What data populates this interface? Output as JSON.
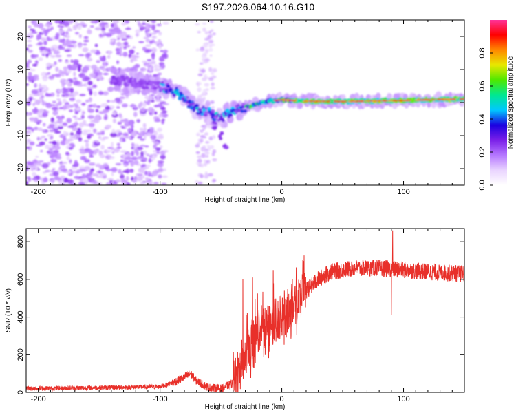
{
  "title": "S197.2026.064.10.16.G10",
  "colors": {
    "snr_line": "#e8302a",
    "axis": "#000000"
  },
  "chart_data": [
    {
      "type": "heatmap",
      "name": "spectrogram",
      "xlabel": "Height of straight line (km)",
      "ylabel": "Frequency (Hz)",
      "xlim": [
        -210,
        150
      ],
      "ylim": [
        -25,
        25
      ],
      "xticks": [
        -200,
        -100,
        0,
        100
      ],
      "yticks": [
        -20,
        -10,
        0,
        10,
        20
      ],
      "colorbar": {
        "label": "Normalized spectral amplitude",
        "range": [
          0,
          1
        ],
        "ticks": [
          0.0,
          0.2,
          0.4,
          0.6,
          0.8
        ],
        "colormap": [
          "#ffffff",
          "#e9d4ff",
          "#b577ff",
          "#7a1fe8",
          "#1a00e0",
          "#00c8ff",
          "#00e890",
          "#4ee800",
          "#e8e800",
          "#ff8800",
          "#ff0000",
          "#ff3399"
        ]
      },
      "features": {
        "noise_region_x": [
          -210,
          -95
        ],
        "sparse_band_x": [
          -70,
          -55
        ],
        "ridge": {
          "x": [
            -140,
            -120,
            -100,
            -90,
            -80,
            -70,
            -60,
            -50,
            -40,
            -30,
            -20,
            -10,
            0,
            20,
            50,
            80,
            100,
            130,
            150
          ],
          "freq": [
            7,
            6,
            5,
            4,
            1,
            -2,
            -3,
            -5,
            -2,
            -1.5,
            -0.5,
            0.5,
            0.8,
            0.4,
            0.3,
            0.5,
            0.6,
            0.9,
            1.0
          ]
        },
        "drift_tail": {
          "x": [
            -55,
            -50,
            -46
          ],
          "freq": [
            -7,
            -10,
            -13
          ]
        }
      }
    },
    {
      "type": "line",
      "name": "snr",
      "xlabel": "Height of straight line (km)",
      "ylabel": "SNR (10 * v/v)",
      "xlim": [
        -210,
        150
      ],
      "ylim": [
        0,
        870
      ],
      "xticks": [
        -200,
        -100,
        0,
        100
      ],
      "yticks": [
        0,
        200,
        400,
        600,
        800
      ],
      "trend": {
        "x": [
          -210,
          -150,
          -100,
          -90,
          -80,
          -75,
          -70,
          -60,
          -50,
          -40,
          -35,
          -30,
          -25,
          -20,
          -15,
          -10,
          -5,
          0,
          10,
          20,
          30,
          40,
          50,
          60,
          80,
          100,
          120,
          150
        ],
        "y": [
          20,
          25,
          30,
          50,
          80,
          100,
          60,
          25,
          20,
          50,
          110,
          180,
          260,
          320,
          350,
          360,
          380,
          400,
          470,
          540,
          600,
          640,
          650,
          660,
          660,
          650,
          640,
          630
        ]
      },
      "spikes": [
        {
          "x": -32,
          "y": 600
        },
        {
          "x": -24,
          "y": 610
        },
        {
          "x": -7,
          "y": 650
        },
        {
          "x": 91,
          "y": 860
        },
        {
          "x": 90,
          "y": 410
        }
      ]
    }
  ]
}
